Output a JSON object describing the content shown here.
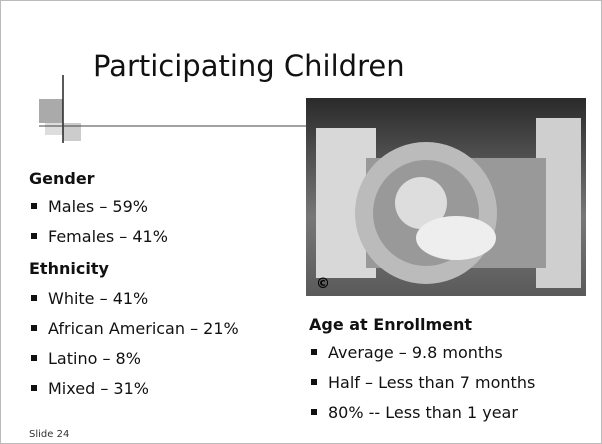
{
  "title": "Participating Children",
  "photo": {
    "caption": "©"
  },
  "sections": [
    {
      "heading": "Gender",
      "items": [
        "Males – 59%",
        "Females – 41%"
      ]
    },
    {
      "heading": "Ethnicity",
      "items": [
        "White – 41%",
        "African American – 21%",
        "Latino – 8%",
        "Mixed – 31%"
      ]
    },
    {
      "heading": "Age at Enrollment",
      "items": [
        "Average – 9.8 months",
        "Half – Less than 7 months",
        "80% -- Less than 1 year"
      ]
    }
  ],
  "footer": "Slide 24"
}
